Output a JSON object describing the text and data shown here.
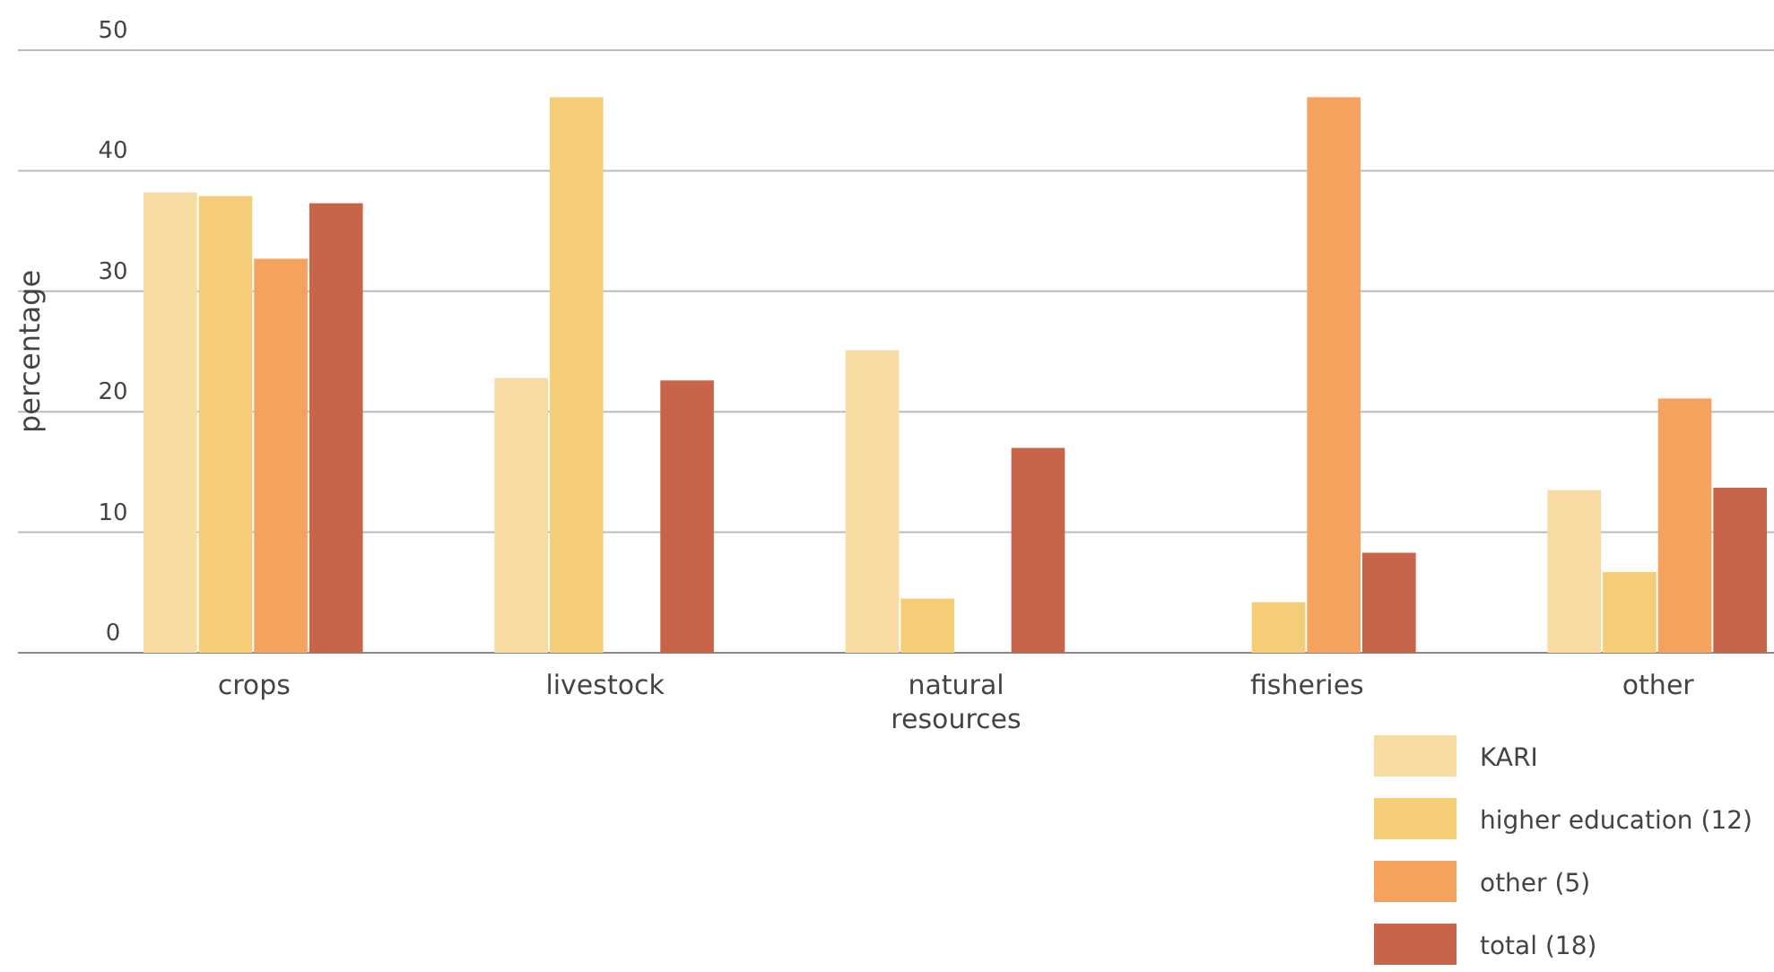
{
  "chart_data": {
    "type": "bar",
    "ylabel": "percentage",
    "categories": [
      "crops",
      "livestock",
      "natural resources",
      "fisheries",
      "other"
    ],
    "series": [
      {
        "name": "KARI",
        "color": "#f7dba3",
        "values": [
          38.2,
          22.8,
          25.1,
          0,
          13.5
        ]
      },
      {
        "name": "higher education (12)",
        "color": "#f5cd78",
        "values": [
          37.9,
          46.1,
          4.5,
          4.2,
          6.7
        ]
      },
      {
        "name": "other (5)",
        "color": "#f5a25e",
        "values": [
          32.7,
          0,
          0,
          46.1,
          21.1
        ]
      },
      {
        "name": "total (18)",
        "color": "#c8644a",
        "values": [
          37.3,
          22.6,
          17.0,
          8.3,
          13.7
        ]
      }
    ],
    "ylim": [
      0,
      50
    ],
    "yticks": [
      0,
      10,
      20,
      30,
      40,
      50
    ],
    "grid": "y",
    "legend": "bottom right"
  }
}
